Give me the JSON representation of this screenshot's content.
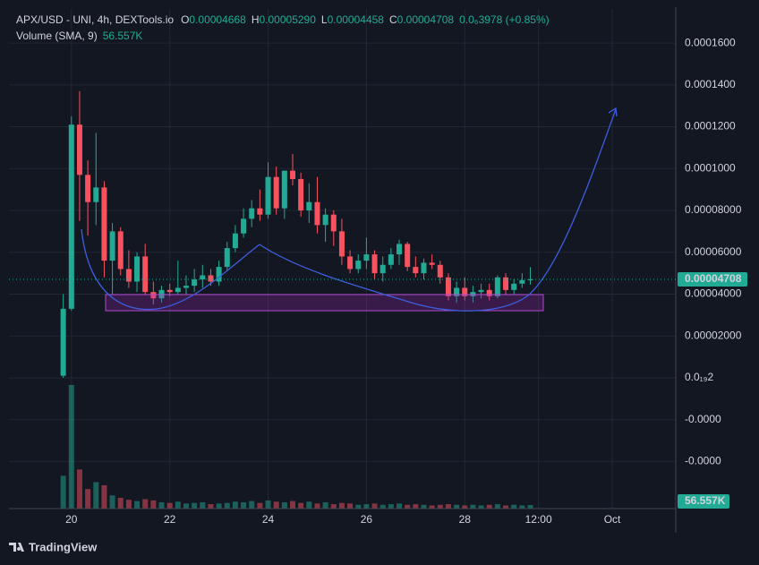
{
  "chart_data": {
    "type": "candlestick",
    "title": "APX/USD - UNI, 4h, DEXTools.io",
    "ohlc_legend": [
      {
        "key": "O",
        "value": "0.00004668"
      },
      {
        "key": "H",
        "value": "0.00005290"
      },
      {
        "key": "L",
        "value": "0.00004458"
      },
      {
        "key": "C",
        "value": "0.00004708"
      }
    ],
    "change": "0.0₆3978 (+0.85%)",
    "volume_title": "Volume (SMA, 9)",
    "volume_value_label": "56.557K",
    "brand": "TradingView",
    "x": [
      -4,
      0,
      4,
      8,
      12,
      16,
      20,
      24,
      28,
      32,
      36,
      40,
      44,
      48,
      52,
      56,
      60,
      64,
      68,
      72,
      76,
      80,
      84,
      88,
      92,
      96,
      100,
      104,
      108,
      112,
      116,
      120,
      124,
      128,
      132,
      136,
      140,
      144,
      148,
      152,
      156,
      160,
      164,
      168,
      172,
      176,
      180,
      184,
      188,
      192,
      196,
      200,
      204,
      208,
      212,
      216,
      220,
      224
    ],
    "open": [
      1e-06,
      3.3e-05,
      0.000121,
      9.7e-05,
      8.4e-05,
      9.1e-05,
      5.6e-05,
      7e-05,
      5.2e-05,
      4.6e-05,
      5.8e-05,
      4.1e-05,
      3.8e-05,
      4.2e-05,
      4.1e-05,
      4.3e-05,
      4.4e-05,
      4.7e-05,
      4.9e-05,
      4.6e-05,
      5.3e-05,
      6.2e-05,
      6.9e-05,
      7.6e-05,
      8.1e-05,
      7.8e-05,
      9.6e-05,
      8.1e-05,
      9.9e-05,
      9.5e-05,
      8e-05,
      8.4e-05,
      7.3e-05,
      7.8e-05,
      7e-05,
      5.8e-05,
      5.2e-05,
      5.6e-05,
      5.9e-05,
      5e-05,
      5.4e-05,
      5.9e-05,
      6.4e-05,
      5.3e-05,
      5e-05,
      5.5e-05,
      5.4e-05,
      4.8e-05,
      3.9e-05,
      4.3e-05,
      3.9e-05,
      4.1e-05,
      4.2e-05,
      3.9e-05,
      4.8e-05,
      4.2e-05,
      4.5e-05,
      4.668e-05
    ],
    "high": [
      4e-05,
      0.000125,
      0.000137,
      0.000104,
      0.000117,
      9.4e-05,
      7.4e-05,
      7.2e-05,
      6.1e-05,
      6e-05,
      6.4e-05,
      4.6e-05,
      4.4e-05,
      4.5e-05,
      5.6e-05,
      4.9e-05,
      5.2e-05,
      5.4e-05,
      5.2e-05,
      5.6e-05,
      6.5e-05,
      7.3e-05,
      8.1e-05,
      8.5e-05,
      9e-05,
      0.000103,
      0.000101,
      9.9e-05,
      0.000107,
      9.8e-05,
      9.3e-05,
      9.6e-05,
      8.1e-05,
      8e-05,
      7.6e-05,
      6.1e-05,
      5.9e-05,
      6.7e-05,
      6.1e-05,
      5.8e-05,
      6.2e-05,
      6.6e-05,
      6.5e-05,
      5.8e-05,
      5.7e-05,
      5.9e-05,
      5.6e-05,
      5e-05,
      4.6e-05,
      4.8e-05,
      4.4e-05,
      4.5e-05,
      4.5e-05,
      4.9e-05,
      5e-05,
      4.7e-05,
      5e-05,
      5.29e-05
    ],
    "low": [
      0,
      3.2e-05,
      7.5e-05,
      6.8e-05,
      7.3e-05,
      4.8e-05,
      4e-05,
      4.9e-05,
      4.3e-05,
      4.1e-05,
      4e-05,
      3.5e-05,
      3.6e-05,
      3.9e-05,
      4e-05,
      4e-05,
      4.1e-05,
      4.3e-05,
      4.4e-05,
      4.4e-05,
      5.1e-05,
      6e-05,
      6.7e-05,
      7.2e-05,
      7.5e-05,
      7.6e-05,
      7.8e-05,
      7.6e-05,
      9.2e-05,
      7.7e-05,
      7.4e-05,
      6.9e-05,
      6.5e-05,
      6.3e-05,
      5.4e-05,
      5e-05,
      5e-05,
      5.2e-05,
      4.7e-05,
      4.6e-05,
      5.2e-05,
      5.4e-05,
      5.1e-05,
      4.8e-05,
      4.7e-05,
      5.2e-05,
      4.5e-05,
      3.7e-05,
      3.6e-05,
      3.7e-05,
      3.6e-05,
      3.8e-05,
      3.7e-05,
      3.8e-05,
      4e-05,
      4e-05,
      4.3e-05,
      4.458e-05
    ],
    "close": [
      3.3e-05,
      0.000121,
      9.7e-05,
      8.4e-05,
      9.1e-05,
      5.6e-05,
      7e-05,
      5.2e-05,
      4.6e-05,
      5.8e-05,
      4.1e-05,
      3.8e-05,
      4.2e-05,
      4.1e-05,
      4.3e-05,
      4.4e-05,
      4.7e-05,
      4.9e-05,
      4.6e-05,
      5.3e-05,
      6.2e-05,
      6.9e-05,
      7.6e-05,
      8.1e-05,
      7.8e-05,
      9.6e-05,
      8.1e-05,
      9.9e-05,
      9.5e-05,
      8e-05,
      8.4e-05,
      7.3e-05,
      7.8e-05,
      7e-05,
      5.8e-05,
      5.2e-05,
      5.6e-05,
      5.9e-05,
      5e-05,
      5.4e-05,
      5.9e-05,
      6.4e-05,
      5.3e-05,
      5e-05,
      5.5e-05,
      5.4e-05,
      4.8e-05,
      3.9e-05,
      4.3e-05,
      3.9e-05,
      4.1e-05,
      4.2e-05,
      3.9e-05,
      4.8e-05,
      4.2e-05,
      4.5e-05,
      4.668e-05,
      4.708e-05
    ],
    "volume": [
      520000,
      1960000,
      620000,
      310000,
      420000,
      370000,
      210000,
      170000,
      140000,
      120000,
      150000,
      130000,
      100000,
      90000,
      110000,
      80000,
      90000,
      100000,
      70000,
      80000,
      90000,
      110000,
      100000,
      120000,
      90000,
      130000,
      110000,
      100000,
      120000,
      90000,
      110000,
      80000,
      100000,
      70000,
      90000,
      80000,
      60000,
      70000,
      80000,
      60000,
      70000,
      80000,
      60000,
      70000,
      60000,
      50000,
      60000,
      70000,
      60000,
      50000,
      60000,
      50000,
      60000,
      70000,
      50000,
      60000,
      50000,
      56557
    ],
    "up_color": "#22ab94",
    "down_color": "#f7525f",
    "xlim": [
      -30.5,
      295
    ],
    "xticks": [
      {
        "value": 0,
        "label": "20"
      },
      {
        "value": 48,
        "label": "22"
      },
      {
        "value": 96,
        "label": "24"
      },
      {
        "value": 144,
        "label": "26"
      },
      {
        "value": 192,
        "label": "28"
      },
      {
        "value": 228,
        "label": "12:00"
      },
      {
        "value": 264,
        "label": "Oct"
      }
    ],
    "ylim": [
      -6.25e-05,
      0.0001763
    ],
    "yticks": [
      {
        "value": 0.00016,
        "label": "0.0001600"
      },
      {
        "value": 0.00014,
        "label": "0.0001400"
      },
      {
        "value": 0.00012,
        "label": "0.0001200"
      },
      {
        "value": 0.0001,
        "label": "0.0001000"
      },
      {
        "value": 8e-05,
        "label": "0.00008000"
      },
      {
        "value": 6e-05,
        "label": "0.00006000"
      },
      {
        "value": 4e-05,
        "label": "0.00004000"
      },
      {
        "value": 2e-05,
        "label": "0.00002000"
      },
      {
        "value": 0,
        "label": "0.0₁₉2"
      },
      {
        "value": -2e-05,
        "label": "-0.0000"
      },
      {
        "value": -4e-05,
        "label": "-0.0000"
      }
    ],
    "volume_lim": [
      0,
      2300000
    ],
    "grid": true
  }
}
